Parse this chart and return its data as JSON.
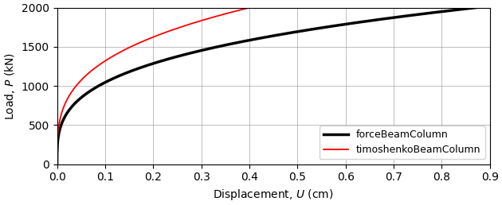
{
  "title": "",
  "xlabel": "Displacement, $U$ (cm)",
  "ylabel": "Load, $P$ (kN)",
  "xlim": [
    0.0,
    0.9
  ],
  "ylim": [
    0,
    2000
  ],
  "xticks": [
    0.0,
    0.1,
    0.2,
    0.3,
    0.4,
    0.5,
    0.6,
    0.7,
    0.8,
    0.9
  ],
  "yticks": [
    0,
    500,
    1000,
    1500,
    2000
  ],
  "force_beam_color": "black",
  "force_beam_lw": 2.5,
  "timoshenko_beam_color": "red",
  "timoshenko_beam_lw": 1.3,
  "legend_labels": [
    "forceBeamColumn",
    "timoshenkoBeamColumn"
  ],
  "legend_loc": "lower right",
  "grid": true,
  "background_color": "#ffffff",
  "force_u_max": 0.87,
  "force_alpha": 0.3,
  "timo_u_max": 0.4,
  "timo_alpha": 0.3,
  "P_max": 2000
}
